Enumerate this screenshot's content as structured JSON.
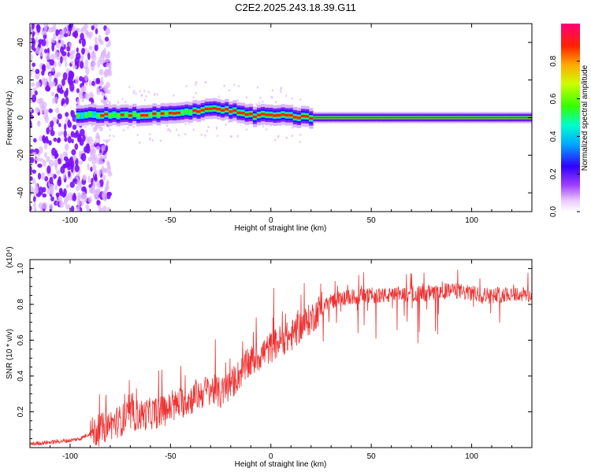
{
  "title": "C2E2.2025.243.18.39.G11",
  "chart_data": [
    {
      "type": "heatmap",
      "name": "spectrogram",
      "xlabel": "Height of straight line (km)",
      "ylabel": "Frequency (Hz)",
      "xlim": [
        -120,
        130
      ],
      "ylim": [
        -50,
        50
      ],
      "xticks": [
        -100,
        -50,
        0,
        50,
        100
      ],
      "yticks": [
        -40,
        -20,
        0,
        20,
        40
      ],
      "colorbar": {
        "label": "Normalized spectral amplitude",
        "range": [
          0,
          1
        ],
        "ticks": [
          0.0,
          0.2,
          0.4,
          0.6,
          0.8
        ],
        "tick_labels": [
          "0.0",
          "0.2",
          "0.4",
          "0.6",
          "0.8"
        ],
        "colors": [
          "#ffffff",
          "#cc88ff",
          "#8800ff",
          "#0000ff",
          "#00ffff",
          "#00ff00",
          "#ffff00",
          "#ff8800",
          "#ff0000",
          "#ff0066"
        ]
      },
      "ridge": {
        "description_points": [
          {
            "x": -95,
            "freq": 1
          },
          {
            "x": -80,
            "freq": 1.5
          },
          {
            "x": -60,
            "freq": 1.5
          },
          {
            "x": -45,
            "freq": 2.5
          },
          {
            "x": -30,
            "freq": 5
          },
          {
            "x": -20,
            "freq": 3.5
          },
          {
            "x": -10,
            "freq": 1
          },
          {
            "x": 0,
            "freq": 1.5
          },
          {
            "x": 10,
            "freq": 0.5
          },
          {
            "x": 20,
            "freq": 0
          },
          {
            "x": 130,
            "freq": 0
          }
        ]
      }
    },
    {
      "type": "line",
      "name": "snr",
      "xlabel": "Height of straight line (km)",
      "ylabel": "SNR (10 * v/v)",
      "scale_label": "(x10⁴)",
      "color": "#ee3333",
      "xlim": [
        -120,
        130
      ],
      "ylim": [
        0,
        1.05
      ],
      "xticks": [
        -100,
        -50,
        0,
        50,
        100
      ],
      "yticks": [
        0.2,
        0.4,
        0.6,
        0.8,
        1.0
      ],
      "ytick_labels": [
        "0.2",
        "0.4",
        "0.6",
        "0.8",
        "1.0"
      ],
      "x": [
        -120,
        -110,
        -100,
        -95,
        -90,
        -85,
        -80,
        -75,
        -70,
        -65,
        -60,
        -55,
        -50,
        -45,
        -40,
        -35,
        -30,
        -25,
        -20,
        -15,
        -10,
        -5,
        0,
        5,
        10,
        15,
        20,
        25,
        30,
        40,
        50,
        60,
        70,
        80,
        90,
        100,
        110,
        120,
        130
      ],
      "y": [
        0.02,
        0.03,
        0.04,
        0.05,
        0.08,
        0.1,
        0.13,
        0.15,
        0.18,
        0.18,
        0.19,
        0.2,
        0.22,
        0.25,
        0.27,
        0.3,
        0.33,
        0.3,
        0.35,
        0.42,
        0.48,
        0.52,
        0.56,
        0.6,
        0.62,
        0.68,
        0.72,
        0.78,
        0.82,
        0.84,
        0.85,
        0.85,
        0.86,
        0.86,
        0.88,
        0.86,
        0.85,
        0.86,
        0.85
      ]
    }
  ]
}
